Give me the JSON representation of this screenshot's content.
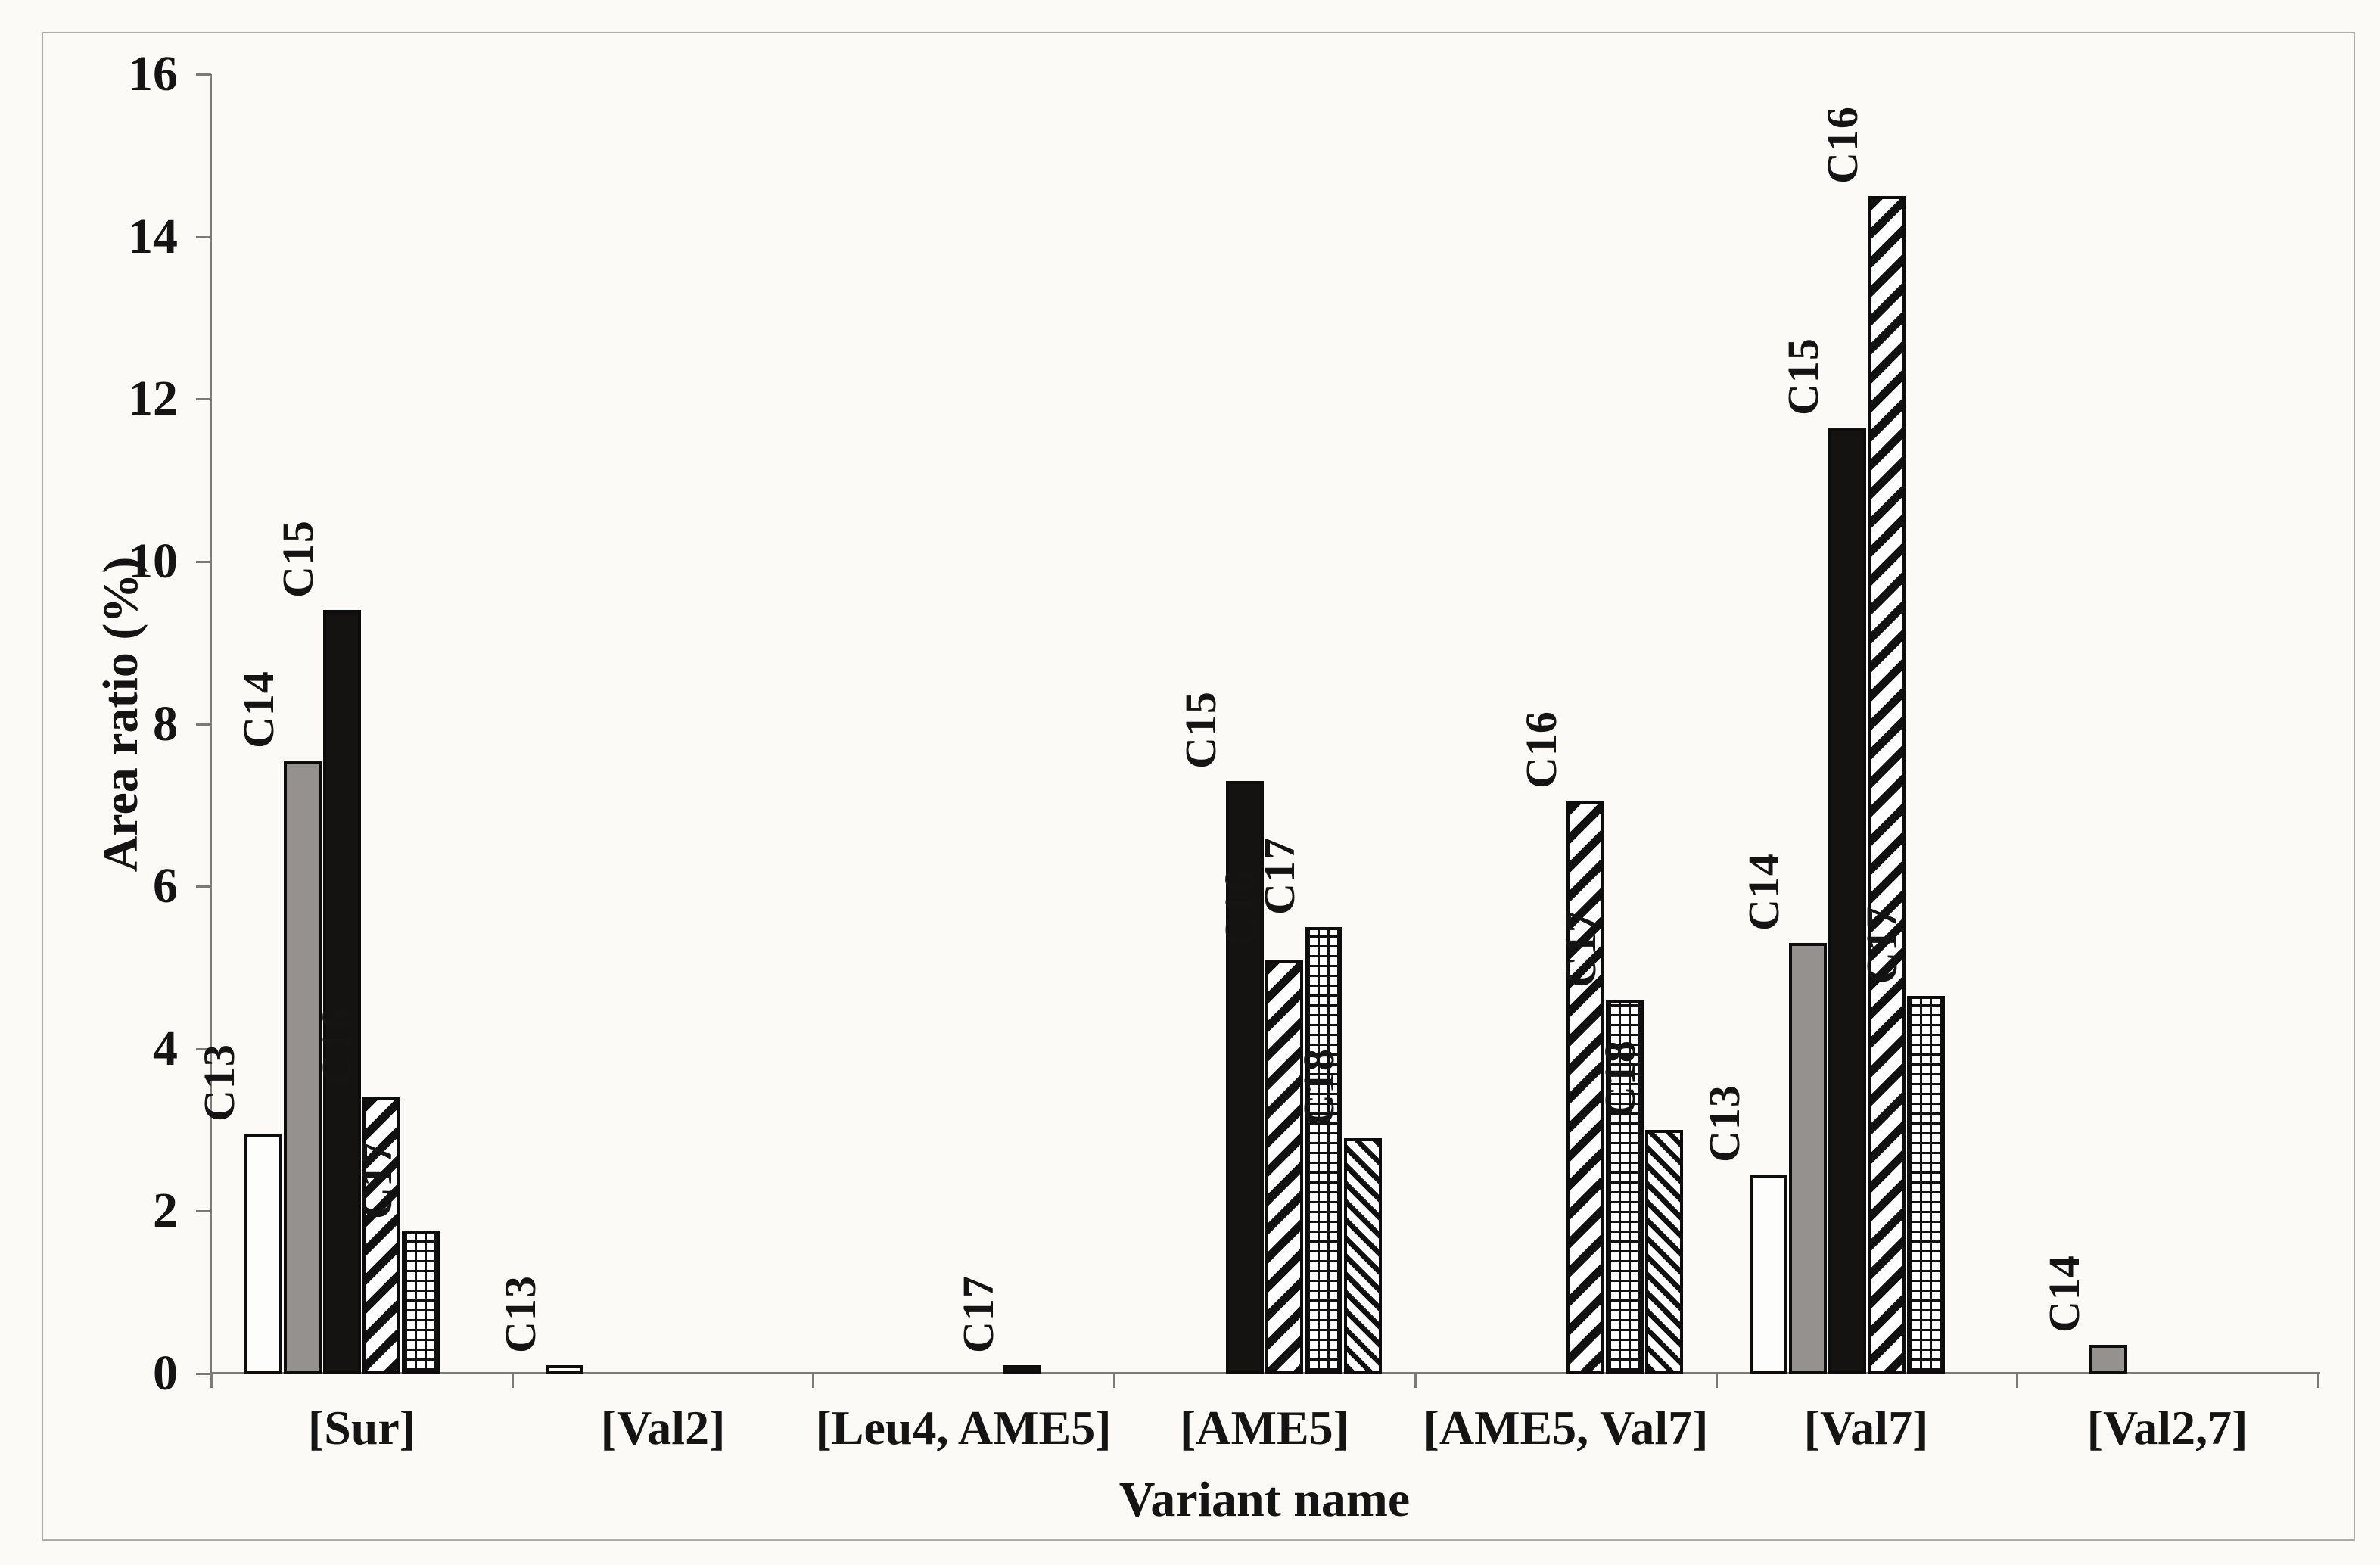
{
  "chart_data": {
    "type": "bar",
    "title": "",
    "xlabel": "Variant name",
    "ylabel": "Area ratio (%)",
    "ylim": [
      0,
      16
    ],
    "ytick_step": 2,
    "grid": false,
    "legend": "none",
    "bar_label_style": "series name printed vertically (rotated 90°) above each visible bar",
    "categories": [
      "[Sur]",
      "[Val2]",
      "[Leu4, AME5]",
      "[AME5]",
      "[AME5, Val7]",
      "[Val7]",
      "[Val2,7]"
    ],
    "series": [
      {
        "name": "C13",
        "pattern": "white",
        "values": [
          2.95,
          0.1,
          0,
          0,
          0,
          2.45,
          0
        ]
      },
      {
        "name": "C14",
        "pattern": "gray",
        "values": [
          7.55,
          0,
          0,
          0,
          0,
          5.3,
          0.35
        ]
      },
      {
        "name": "C15",
        "pattern": "black",
        "values": [
          9.4,
          0,
          0,
          7.3,
          0,
          11.65,
          0
        ]
      },
      {
        "name": "C16",
        "pattern": "diagonal-up-wide",
        "values": [
          3.4,
          0,
          0,
          5.1,
          7.05,
          14.5,
          0
        ]
      },
      {
        "name": "C17",
        "pattern": "grid",
        "values": [
          1.75,
          0,
          0.1,
          5.5,
          4.6,
          4.65,
          0
        ]
      },
      {
        "name": "C18",
        "pattern": "diagonal-down-thin",
        "values": [
          0,
          0,
          0,
          2.9,
          3.0,
          0,
          0
        ]
      }
    ]
  },
  "colors": {
    "background": "#fbfaf7",
    "frame_border": "#ababab",
    "axis": "#7a7a7a",
    "bar_border": "#0d0d0d",
    "bar_gray_fill": "#95918e",
    "bar_black_fill": "#151311",
    "text": "#141414"
  }
}
